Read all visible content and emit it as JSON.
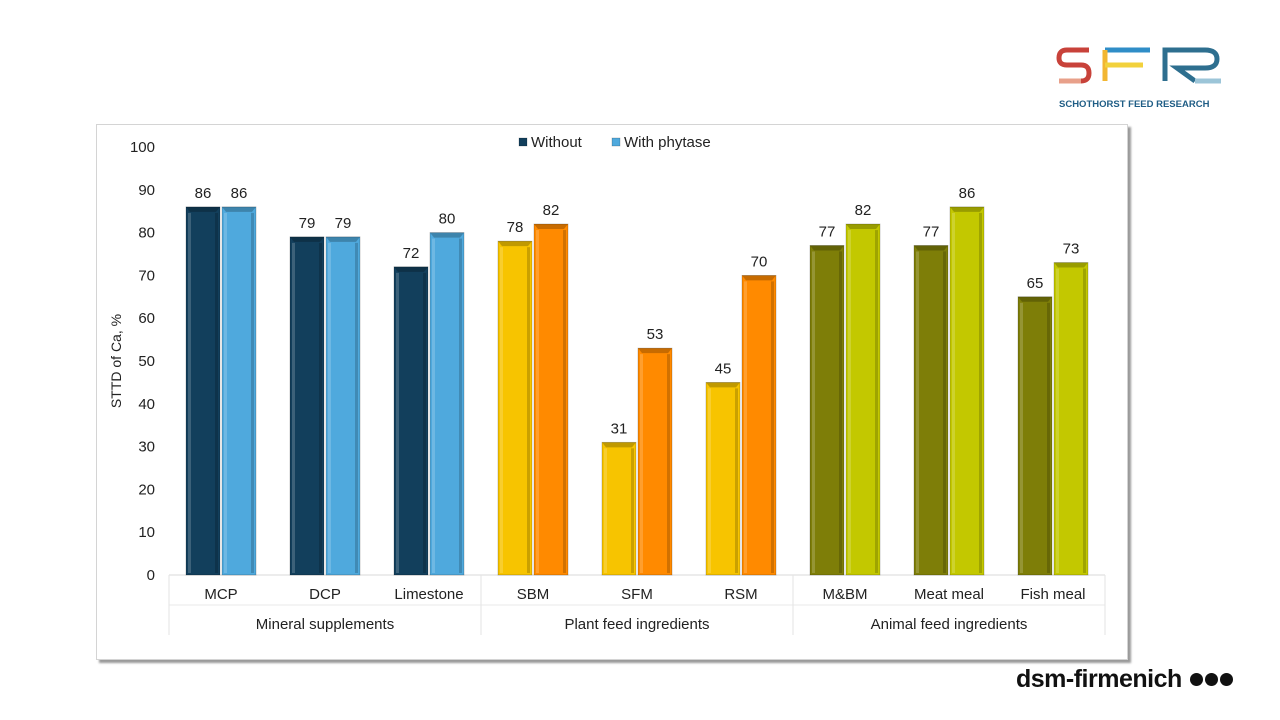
{
  "logos": {
    "sfr_caption": "SCHOTHORST FEED RESEARCH",
    "dsm_text": "dsm-firmenich"
  },
  "chart_data": {
    "type": "bar",
    "ylabel": "STTD of Ca, %",
    "ylim": [
      0,
      100
    ],
    "yticks": [
      0,
      10,
      20,
      30,
      40,
      50,
      60,
      70,
      80,
      90,
      100
    ],
    "grid": false,
    "legend_position": "top-center",
    "legend": [
      {
        "name": "Without",
        "color": "#123f5c"
      },
      {
        "name": "With phytase",
        "color": "#4fa9dd"
      }
    ],
    "categories": [
      "MCP",
      "DCP",
      "Limestone",
      "SBM",
      "SFM",
      "RSM",
      "M&BM",
      "Meat meal",
      "Fish meal"
    ],
    "groups": [
      {
        "label": "Mineral supplements",
        "categories": [
          "MCP",
          "DCP",
          "Limestone"
        ]
      },
      {
        "label": "Plant feed ingredients",
        "categories": [
          "SBM",
          "SFM",
          "RSM"
        ]
      },
      {
        "label": "Animal feed ingredients",
        "categories": [
          "M&BM",
          "Meat meal",
          "Fish meal"
        ]
      }
    ],
    "series": [
      {
        "name": "Without",
        "values": [
          86,
          79,
          72,
          78,
          31,
          45,
          77,
          77,
          65
        ]
      },
      {
        "name": "With phytase",
        "values": [
          86,
          79,
          80,
          82,
          53,
          70,
          82,
          86,
          73
        ]
      }
    ],
    "bar_colors": {
      "Mineral supplements": [
        "#123f5c",
        "#4fa9dd"
      ],
      "Plant feed ingredients": [
        "#f7c400",
        "#ff8a00"
      ],
      "Animal feed ingredients": [
        "#7e7e08",
        "#c3c800"
      ]
    }
  }
}
